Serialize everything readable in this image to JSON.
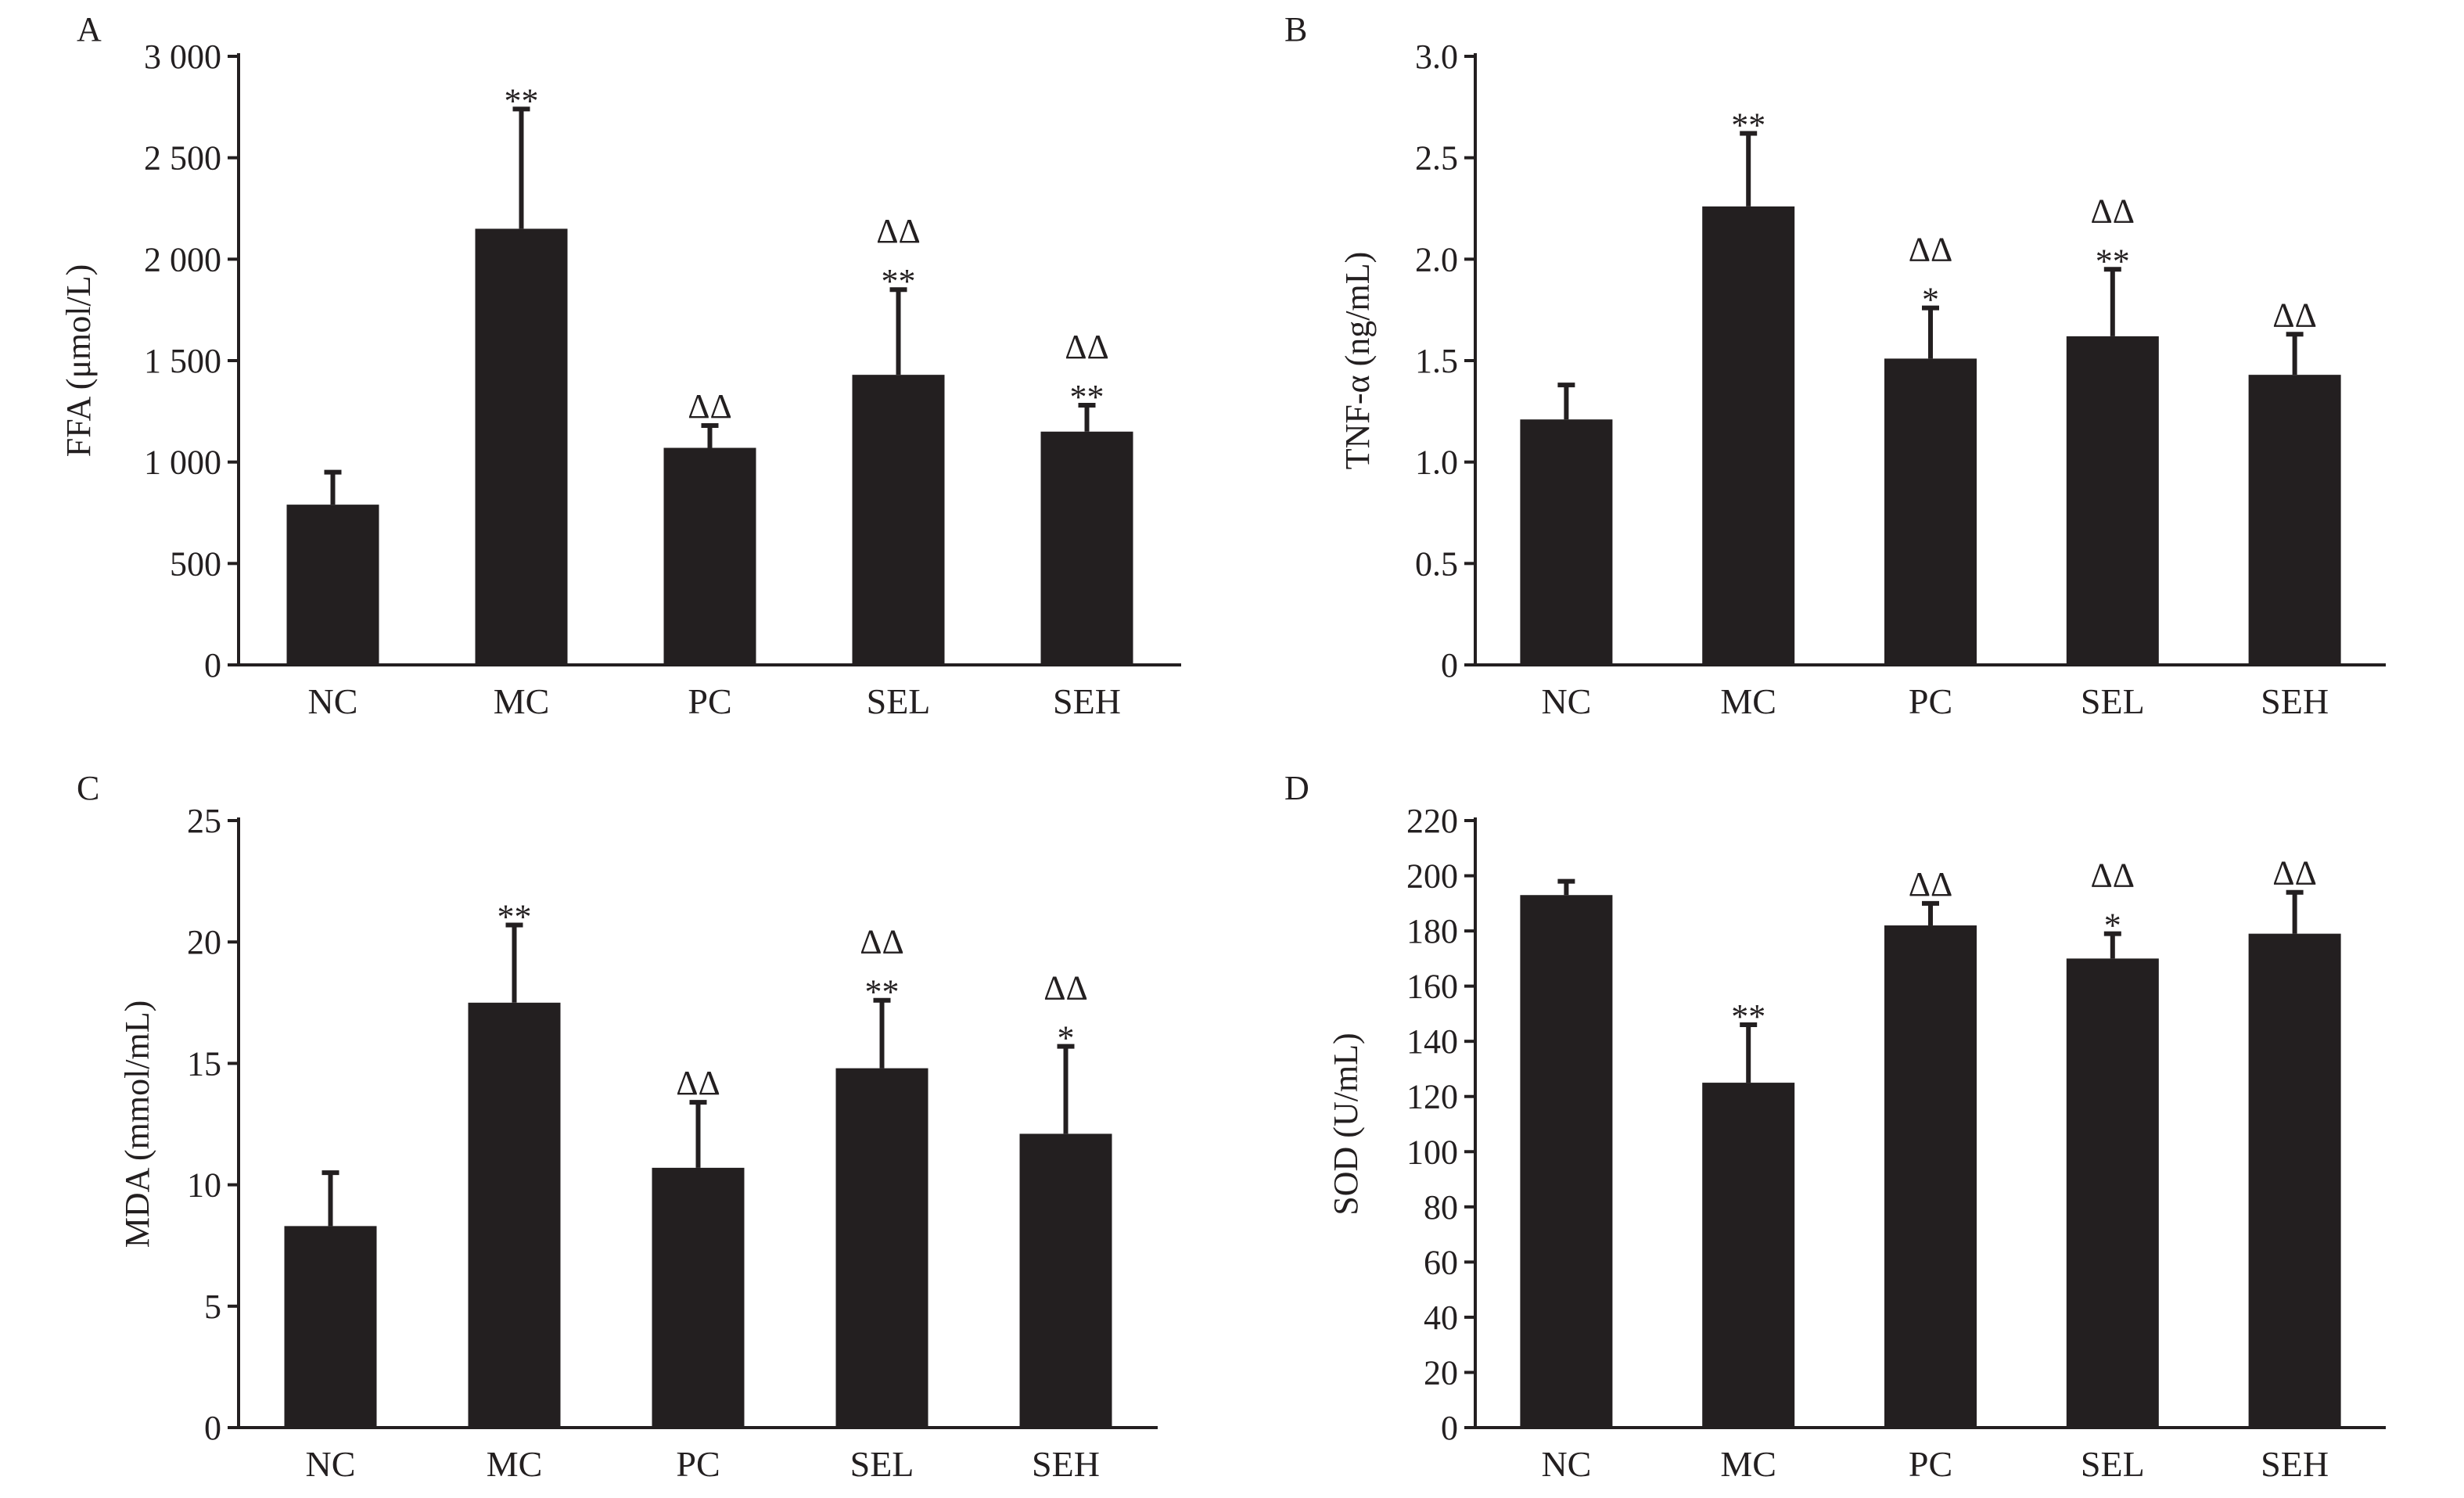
{
  "colors": {
    "bar": "#231f20",
    "axis": "#231f20",
    "background": "#ffffff"
  },
  "chart_data": [
    {
      "type": "bar",
      "panel": "A",
      "ylabel": "FFA (μmol/L)",
      "categories": [
        "NC",
        "MC",
        "PC",
        "SEL",
        "SEH"
      ],
      "values": [
        790,
        2150,
        1070,
        1430,
        1150
      ],
      "errors": [
        160,
        590,
        110,
        420,
        130
      ],
      "significance": [
        [],
        [
          "**"
        ],
        [
          "ΔΔ"
        ],
        [
          "ΔΔ",
          "**"
        ],
        [
          "ΔΔ",
          "**"
        ]
      ],
      "ylim": [
        0,
        3000
      ],
      "yticks": [
        0,
        500,
        1000,
        1500,
        2000,
        2500,
        3000
      ],
      "ytick_labels": [
        "0",
        "500",
        "1 000",
        "1 500",
        "2 000",
        "2 500",
        "3 000"
      ],
      "grid": false
    },
    {
      "type": "bar",
      "panel": "B",
      "ylabel": "TNF-α (ng/mL)",
      "categories": [
        "NC",
        "MC",
        "PC",
        "SEL",
        "SEH"
      ],
      "values": [
        1.21,
        2.26,
        1.51,
        1.62,
        1.43
      ],
      "errors": [
        0.17,
        0.36,
        0.25,
        0.33,
        0.2
      ],
      "significance": [
        [],
        [
          "**"
        ],
        [
          "ΔΔ",
          "*"
        ],
        [
          "ΔΔ",
          "**"
        ],
        [
          "ΔΔ"
        ]
      ],
      "ylim": [
        0,
        3.0
      ],
      "yticks": [
        0,
        0.5,
        1.0,
        1.5,
        2.0,
        2.5,
        3.0
      ],
      "ytick_labels": [
        "0",
        "0.5",
        "1.0",
        "1.5",
        "2.0",
        "2.5",
        "3.0"
      ],
      "grid": false
    },
    {
      "type": "bar",
      "panel": "C",
      "ylabel": "MDA (mmol/mL)",
      "categories": [
        "NC",
        "MC",
        "PC",
        "SEL",
        "SEH"
      ],
      "values": [
        8.3,
        17.5,
        10.7,
        14.8,
        12.1
      ],
      "errors": [
        2.2,
        3.2,
        2.7,
        2.8,
        3.6
      ],
      "significance": [
        [],
        [
          "**"
        ],
        [
          "ΔΔ"
        ],
        [
          "ΔΔ",
          "**"
        ],
        [
          "ΔΔ",
          "*"
        ]
      ],
      "ylim": [
        0,
        25
      ],
      "yticks": [
        0,
        5,
        10,
        15,
        20,
        25
      ],
      "ytick_labels": [
        "0",
        "5",
        "10",
        "15",
        "20",
        "25"
      ],
      "grid": false
    },
    {
      "type": "bar",
      "panel": "D",
      "ylabel": "SOD (U/mL)",
      "categories": [
        "NC",
        "MC",
        "PC",
        "SEL",
        "SEH"
      ],
      "values": [
        193,
        125,
        182,
        170,
        179
      ],
      "errors": [
        5,
        21,
        8,
        9,
        15
      ],
      "significance": [
        [],
        [
          "**"
        ],
        [
          "ΔΔ"
        ],
        [
          "ΔΔ",
          "*"
        ],
        [
          "ΔΔ"
        ]
      ],
      "ylim": [
        0,
        220
      ],
      "yticks": [
        0,
        20,
        40,
        60,
        80,
        100,
        120,
        140,
        160,
        180,
        200,
        220
      ],
      "ytick_labels": [
        "0",
        "20",
        "40",
        "60",
        "80",
        "100",
        "120",
        "140",
        "160",
        "180",
        "200",
        "220"
      ],
      "grid": false
    }
  ]
}
